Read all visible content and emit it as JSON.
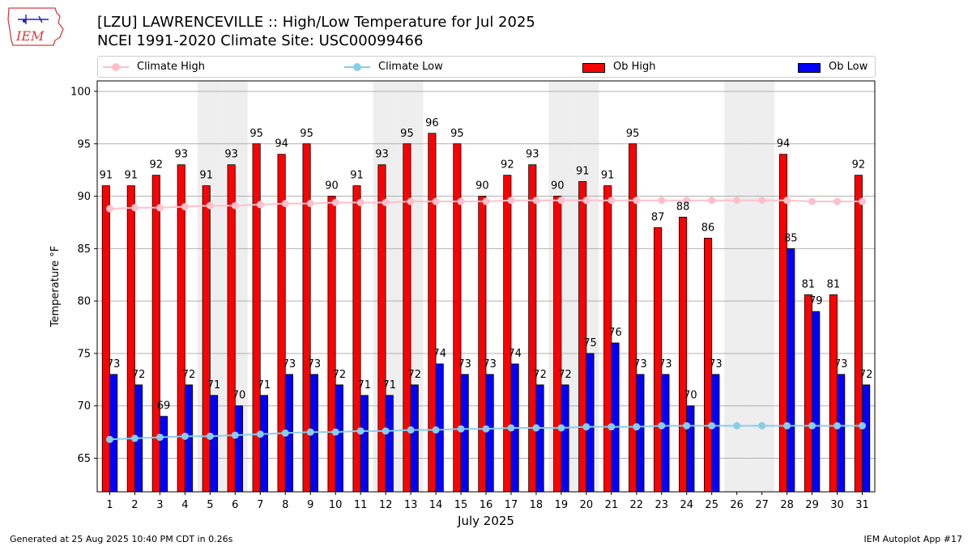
{
  "header": {
    "logo_text": "IEM",
    "title_line1": "[LZU] LAWRENCEVILLE :: High/Low Temperature for Jul 2025",
    "title_line2": "NCEI 1991-2020 Climate Site: USC00099466"
  },
  "legend": {
    "climate_high": "Climate High",
    "climate_low": "Climate Low",
    "ob_high": "Ob High",
    "ob_low": "Ob Low"
  },
  "colors": {
    "ob_high": "#ff0000",
    "ob_low": "#0000ff",
    "climate_high": "#ffc0cb",
    "climate_low": "#87ceeb",
    "weekend_shade": "#eeeeee",
    "grid": "#b0b0b0"
  },
  "chart_data": {
    "type": "bar",
    "title": "[LZU] LAWRENCEVILLE :: High/Low Temperature for Jul 2025",
    "xlabel": "July 2025",
    "ylabel": "Temperature °F",
    "ylim": [
      61.8,
      101
    ],
    "yticks": [
      65,
      70,
      75,
      80,
      85,
      90,
      95,
      100
    ],
    "grid": "horizontal",
    "legend_position": "top",
    "categories": [
      "1",
      "2",
      "3",
      "4",
      "5",
      "6",
      "7",
      "8",
      "9",
      "10",
      "11",
      "12",
      "13",
      "14",
      "15",
      "16",
      "17",
      "18",
      "19",
      "20",
      "21",
      "22",
      "23",
      "24",
      "25",
      "26",
      "27",
      "28",
      "29",
      "30",
      "31"
    ],
    "shaded_days": [
      5,
      6,
      12,
      13,
      19,
      20,
      26,
      27
    ],
    "series": [
      {
        "name": "Ob High",
        "kind": "bar",
        "values": [
          91,
          91,
          92,
          93,
          91,
          93,
          95,
          94,
          95,
          90,
          91,
          93,
          95,
          96,
          95,
          90,
          92,
          93,
          90,
          91.4,
          91,
          95,
          87,
          88,
          86,
          null,
          null,
          94,
          80.6,
          80.6,
          92
        ],
        "labels": [
          "91",
          "91",
          "92",
          "93",
          "91",
          "93",
          "95",
          "94",
          "95",
          "90",
          "91",
          "93",
          "95",
          "96",
          "95",
          "90",
          "92",
          "93",
          "90",
          "91",
          "91",
          "95",
          "87",
          "88",
          "86",
          "",
          "",
          "94",
          "81",
          "81",
          "92"
        ]
      },
      {
        "name": "Ob Low",
        "kind": "bar",
        "values": [
          73,
          72,
          69,
          72,
          71,
          70,
          71,
          73,
          73,
          72,
          71,
          71,
          72,
          74,
          73,
          73,
          74,
          72,
          72,
          75,
          76,
          73,
          73,
          70,
          73,
          null,
          null,
          85,
          79,
          73,
          72
        ],
        "labels": [
          "73",
          "72",
          "69",
          "72",
          "71",
          "70",
          "71",
          "73",
          "73",
          "72",
          "71",
          "71",
          "72",
          "74",
          "73",
          "73",
          "74",
          "72",
          "72",
          "75",
          "76",
          "73",
          "73",
          "70",
          "73",
          "",
          "",
          "85",
          "79",
          "73",
          "72"
        ]
      },
      {
        "name": "Climate High",
        "kind": "line",
        "values": [
          88.8,
          88.9,
          88.9,
          89.0,
          89.1,
          89.1,
          89.2,
          89.3,
          89.3,
          89.4,
          89.4,
          89.4,
          89.5,
          89.5,
          89.5,
          89.5,
          89.6,
          89.6,
          89.6,
          89.6,
          89.6,
          89.6,
          89.6,
          89.6,
          89.6,
          89.6,
          89.6,
          89.6,
          89.5,
          89.5,
          89.5
        ]
      },
      {
        "name": "Climate Low",
        "kind": "line",
        "values": [
          66.8,
          66.9,
          67.0,
          67.1,
          67.1,
          67.2,
          67.3,
          67.4,
          67.5,
          67.5,
          67.6,
          67.6,
          67.7,
          67.7,
          67.8,
          67.8,
          67.9,
          67.9,
          67.9,
          68.0,
          68.0,
          68.0,
          68.1,
          68.1,
          68.1,
          68.1,
          68.1,
          68.1,
          68.1,
          68.1,
          68.1
        ]
      }
    ]
  },
  "footer": {
    "left": "Generated at 25 Aug 2025 10:40 PM CDT in 0.26s",
    "right": "IEM Autoplot App #17"
  }
}
